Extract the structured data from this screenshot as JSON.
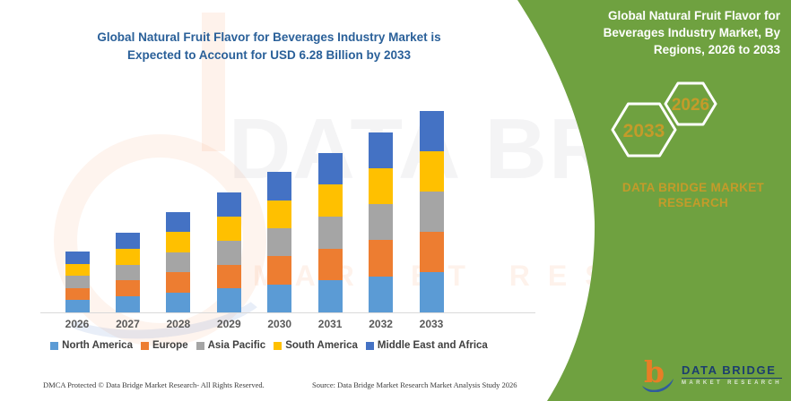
{
  "colors": {
    "green_panel": "#6FA140",
    "gold": "#C49B2A",
    "title_blue": "#2A6099",
    "axis_gray": "#D9D9D9",
    "tick_gray": "#595959"
  },
  "chart": {
    "title_line1": "Global Natural Fruit Flavor for Beverages Industry Market is",
    "title_line2": "Expected to Account for USD 6.28 Billion by 2033"
  },
  "chart_data": {
    "type": "bar",
    "stacked": true,
    "title": "Global Natural Fruit Flavor for Beverages Industry Market is Expected to Account for USD 6.28 Billion by 2033",
    "unit": "USD Billion",
    "categories": [
      "2026",
      "2027",
      "2028",
      "2029",
      "2030",
      "2031",
      "2032",
      "2033"
    ],
    "series": [
      {
        "name": "North America",
        "color": "#5B9BD5",
        "values": [
          0.38,
          0.5,
          0.63,
          0.75,
          0.88,
          1.0,
          1.13,
          1.26
        ]
      },
      {
        "name": "Europe",
        "color": "#ED7D31",
        "values": [
          0.38,
          0.5,
          0.63,
          0.75,
          0.88,
          1.0,
          1.13,
          1.26
        ]
      },
      {
        "name": "Asia Pacific",
        "color": "#A5A5A5",
        "values": [
          0.38,
          0.5,
          0.63,
          0.75,
          0.88,
          1.0,
          1.13,
          1.26
        ]
      },
      {
        "name": "South America",
        "color": "#FFC000",
        "values": [
          0.38,
          0.5,
          0.63,
          0.75,
          0.88,
          1.0,
          1.13,
          1.26
        ]
      },
      {
        "name": "Middle East and Africa",
        "color": "#4472C4",
        "values": [
          0.38,
          0.5,
          0.63,
          0.75,
          0.88,
          1.0,
          1.13,
          1.26
        ]
      }
    ],
    "totals_estimated": [
      1.88,
      2.51,
      3.14,
      3.77,
      4.4,
      5.02,
      5.65,
      6.28
    ],
    "highlight_value": "USD 6.28 Billion",
    "ylim": [
      0,
      6.28
    ],
    "grid": false,
    "legend_position": "bottom"
  },
  "side_panel": {
    "title": "Global Natural Fruit Flavor for Beverages Industry Market, By Regions, 2026 to 2033",
    "hexagon_front_label": "2026",
    "hexagon_back_label": "2033",
    "brand_line": "DATA BRIDGE MARKET RESEARCH"
  },
  "logo": {
    "brand": "DATA BRIDGE",
    "sub": "MARKET RESEARCH"
  },
  "watermark": {
    "line1": "DATA BRIDGE",
    "line2": "MARKET RESEARCH"
  },
  "footer": {
    "left": "DMCA Protected © Data Bridge Market Research- All Rights Reserved.",
    "right": "Source: Data Bridge Market Research Market Analysis Study 2026"
  }
}
